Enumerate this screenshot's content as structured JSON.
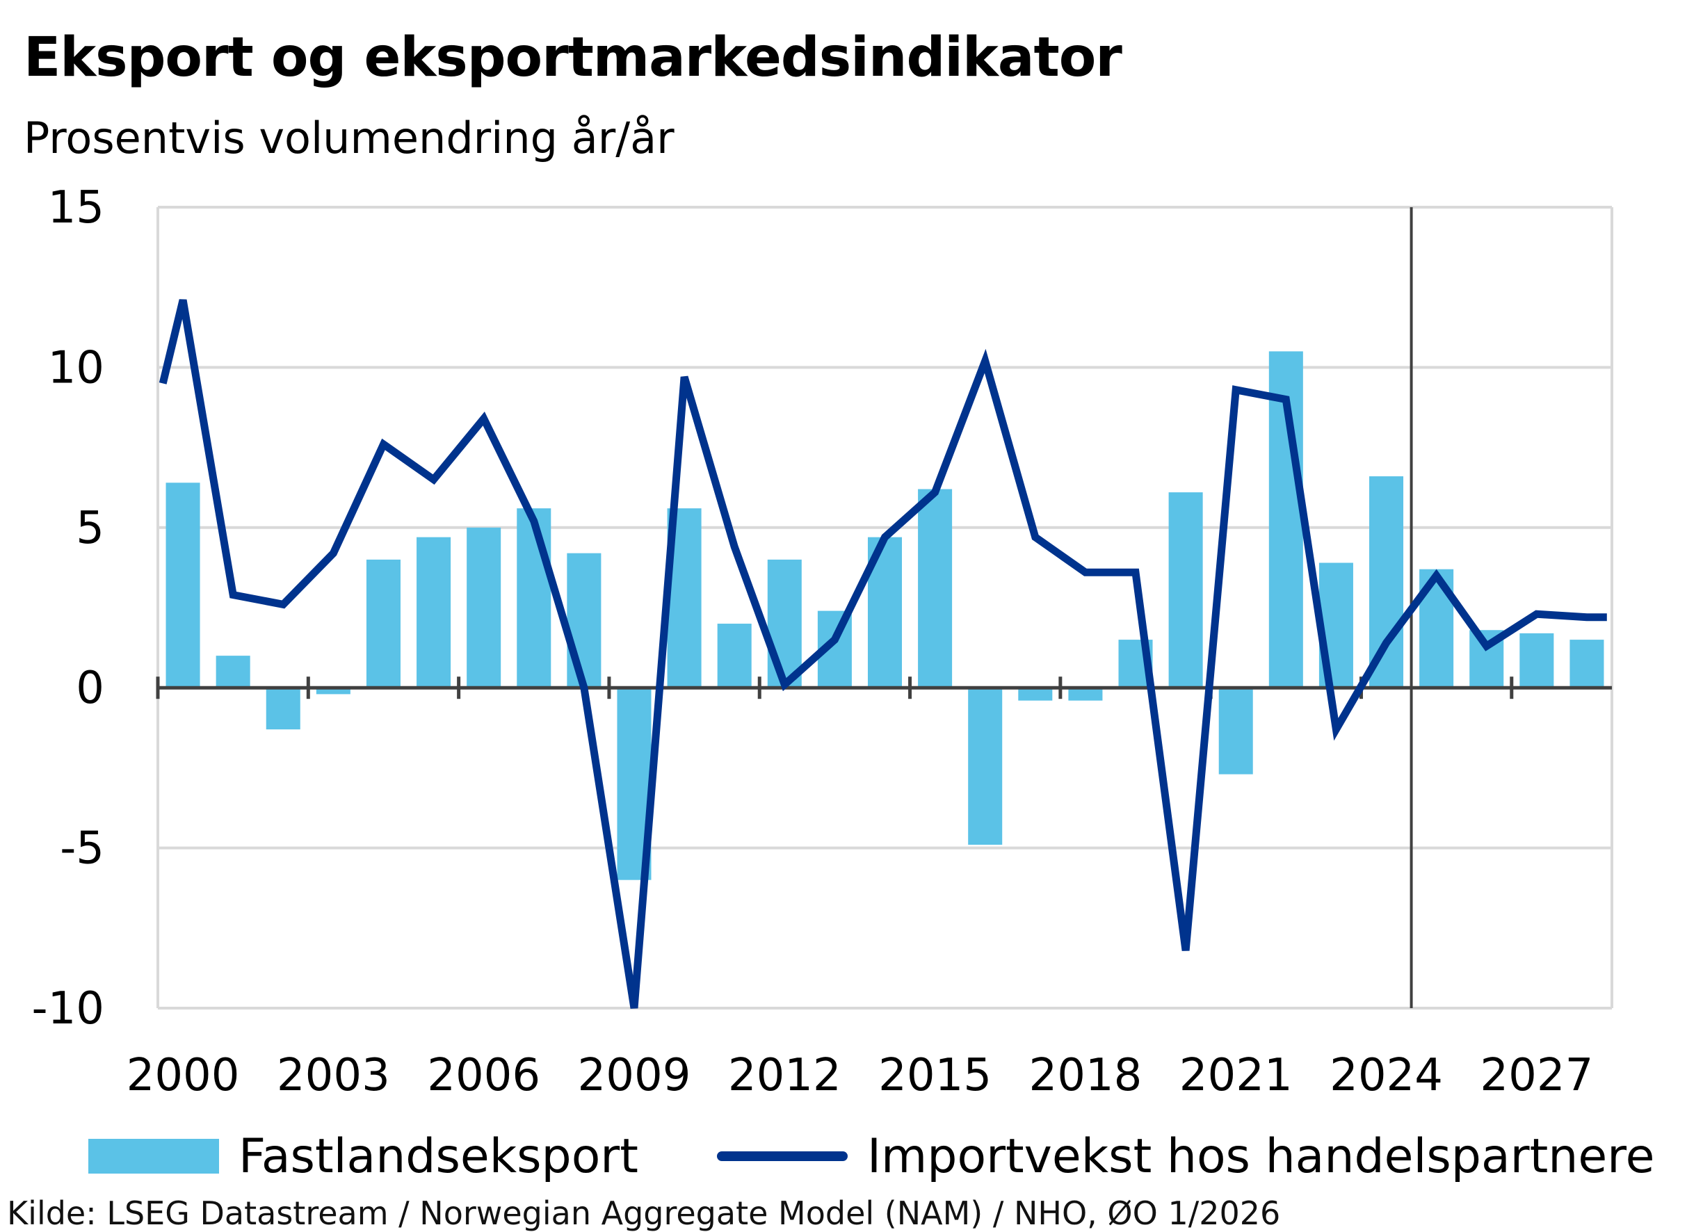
{
  "title": "Eksport  og eksportmarkedsindikator",
  "subtitle": "Prosentvis volumendring år/år",
  "source": "Kilde: LSEG Datastream / Norwegian Aggregate Model (NAM) / NHO, ØO 1/2026",
  "colors": {
    "bar": "#5bc2e7",
    "line": "#00338d",
    "grid": "#d9d9d9",
    "axis": "#404040"
  },
  "chart_data": {
    "type": "bar",
    "years": [
      2000,
      2001,
      2002,
      2003,
      2004,
      2005,
      2006,
      2007,
      2008,
      2009,
      2010,
      2011,
      2012,
      2013,
      2014,
      2015,
      2016,
      2017,
      2018,
      2019,
      2020,
      2021,
      2022,
      2023,
      2024,
      2025,
      2026,
      2027,
      2028
    ],
    "x_tick_labels": [
      "2000",
      "2003",
      "2006",
      "2009",
      "2012",
      "2015",
      "2018",
      "2021",
      "2024",
      "2027"
    ],
    "y_tick_labels": [
      "15",
      "10",
      "5",
      "0",
      "-5",
      "-10"
    ],
    "ylim": [
      -10,
      15
    ],
    "forecast_divider_between": [
      2024,
      2025
    ],
    "legend_position": "bottom",
    "grid": true,
    "series": [
      {
        "name": "Fastlandseksport",
        "kind": "bar",
        "values": [
          6.4,
          1.0,
          -1.3,
          -0.2,
          4.0,
          4.7,
          5.0,
          5.6,
          4.2,
          -6.0,
          5.6,
          2.0,
          4.0,
          2.4,
          4.7,
          6.2,
          -4.9,
          -0.4,
          -0.4,
          1.5,
          6.1,
          -2.7,
          10.5,
          3.9,
          6.6,
          3.7,
          1.8,
          1.7,
          1.5
        ]
      },
      {
        "name": "Importvekst hos handelspartnere",
        "kind": "line",
        "points": [
          [
            1999.6,
            9.5
          ],
          [
            2000,
            12.1
          ],
          [
            2001,
            2.9
          ],
          [
            2002,
            2.6
          ],
          [
            2003,
            4.2
          ],
          [
            2004,
            7.6
          ],
          [
            2005,
            6.5
          ],
          [
            2006,
            8.4
          ],
          [
            2007,
            5.2
          ],
          [
            2008,
            0.0
          ],
          [
            2009,
            -10.0
          ],
          [
            2010,
            9.7
          ],
          [
            2011,
            4.4
          ],
          [
            2012,
            0.1
          ],
          [
            2013,
            1.5
          ],
          [
            2014,
            4.7
          ],
          [
            2015,
            6.1
          ],
          [
            2016,
            10.2
          ],
          [
            2017,
            4.7
          ],
          [
            2018,
            3.6
          ],
          [
            2019,
            3.6
          ],
          [
            2020,
            -8.2
          ],
          [
            2021,
            9.3
          ],
          [
            2022,
            9.0
          ],
          [
            2023,
            -1.3
          ],
          [
            2024,
            1.4
          ],
          [
            2025,
            3.5
          ],
          [
            2026,
            1.3
          ],
          [
            2027,
            2.3
          ],
          [
            2028,
            2.2
          ],
          [
            2028.4,
            2.2
          ]
        ]
      }
    ]
  }
}
